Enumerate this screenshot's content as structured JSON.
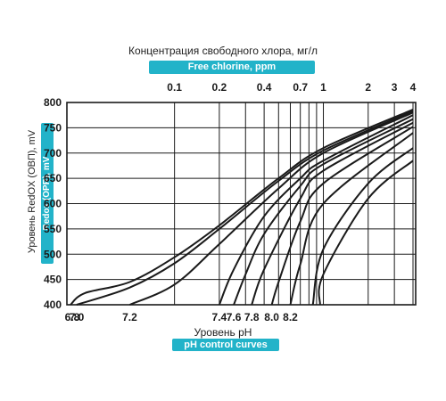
{
  "chart_data": {
    "type": "line",
    "title": "Концентрация свободного хлора, мг/л",
    "subtitle": "Free chlorine, ppm",
    "xlabel": "Уровень pH",
    "xlabel_sub": "pH control curves",
    "ylabel": "Уровень RedOX (ОВП), mV",
    "ylabel_sub": "Redox (OPR), mV",
    "y_ticks": [
      "400",
      "450",
      "500",
      "550",
      "600",
      "650",
      "700",
      "750",
      "800"
    ],
    "ylim": [
      400,
      800
    ],
    "top_axis": {
      "scale": "log",
      "ticks": [
        {
          "value": 0.1,
          "label": "0.1"
        },
        {
          "value": 0.2,
          "label": "0.2"
        },
        {
          "value": 0.4,
          "label": "0.4"
        },
        {
          "value": 0.7,
          "label": "0.7"
        },
        {
          "value": 1,
          "label": "1"
        },
        {
          "value": 2,
          "label": "2"
        },
        {
          "value": 3,
          "label": "3"
        },
        {
          "value": 4,
          "label": "4"
        }
      ],
      "gridlines": [
        0.1,
        0.2,
        0.3,
        0.4,
        0.5,
        0.6,
        0.7,
        0.8,
        0.9,
        1,
        2,
        3,
        4
      ]
    },
    "grid": true,
    "series": [
      {
        "label": "6.8",
        "points": [
          [
            0.0,
            400
          ],
          [
            0.025,
            423
          ],
          [
            0.05,
            445
          ],
          [
            0.1,
            494
          ],
          [
            0.2,
            557
          ],
          [
            0.5,
            650
          ],
          [
            1,
            710
          ],
          [
            4,
            786
          ]
        ]
      },
      {
        "label": "7.0",
        "points": [
          [
            0.022,
            400
          ],
          [
            0.05,
            434
          ],
          [
            0.1,
            482
          ],
          [
            0.2,
            550
          ],
          [
            0.5,
            645
          ],
          [
            1,
            705
          ],
          [
            4,
            783
          ]
        ]
      },
      {
        "label": "7.2",
        "points": [
          [
            0.05,
            400
          ],
          [
            0.1,
            440
          ],
          [
            0.2,
            520
          ],
          [
            0.5,
            630
          ],
          [
            1,
            700
          ],
          [
            4,
            780
          ]
        ]
      },
      {
        "label": "7.4",
        "points": [
          [
            0.2,
            400
          ],
          [
            0.25,
            470
          ],
          [
            0.4,
            575
          ],
          [
            0.7,
            650
          ],
          [
            1,
            685
          ],
          [
            4,
            775
          ]
        ]
      },
      {
        "label": "7.6",
        "points": [
          [
            0.25,
            400
          ],
          [
            0.3,
            460
          ],
          [
            0.4,
            540
          ],
          [
            0.7,
            635
          ],
          [
            1,
            678
          ],
          [
            4,
            767
          ]
        ]
      },
      {
        "label": "7.8",
        "points": [
          [
            0.33,
            400
          ],
          [
            0.4,
            470
          ],
          [
            0.7,
            610
          ],
          [
            1,
            665
          ],
          [
            4,
            760
          ]
        ]
      },
      {
        "label": "8.0",
        "points": [
          [
            0.45,
            400
          ],
          [
            0.5,
            445
          ],
          [
            0.7,
            565
          ],
          [
            1,
            640
          ],
          [
            4,
            752
          ]
        ]
      },
      {
        "label": "8.2",
        "points": [
          [
            0.6,
            400
          ],
          [
            0.7,
            480
          ],
          [
            1,
            600
          ],
          [
            4,
            740
          ]
        ]
      },
      {
        "label": "",
        "points": [
          [
            0.85,
            400
          ],
          [
            1,
            510
          ],
          [
            2,
            640
          ],
          [
            4,
            710
          ]
        ]
      },
      {
        "label": "",
        "points": [
          [
            0.95,
            400
          ],
          [
            1,
            460
          ],
          [
            2,
            610
          ],
          [
            4,
            685
          ]
        ]
      }
    ]
  }
}
